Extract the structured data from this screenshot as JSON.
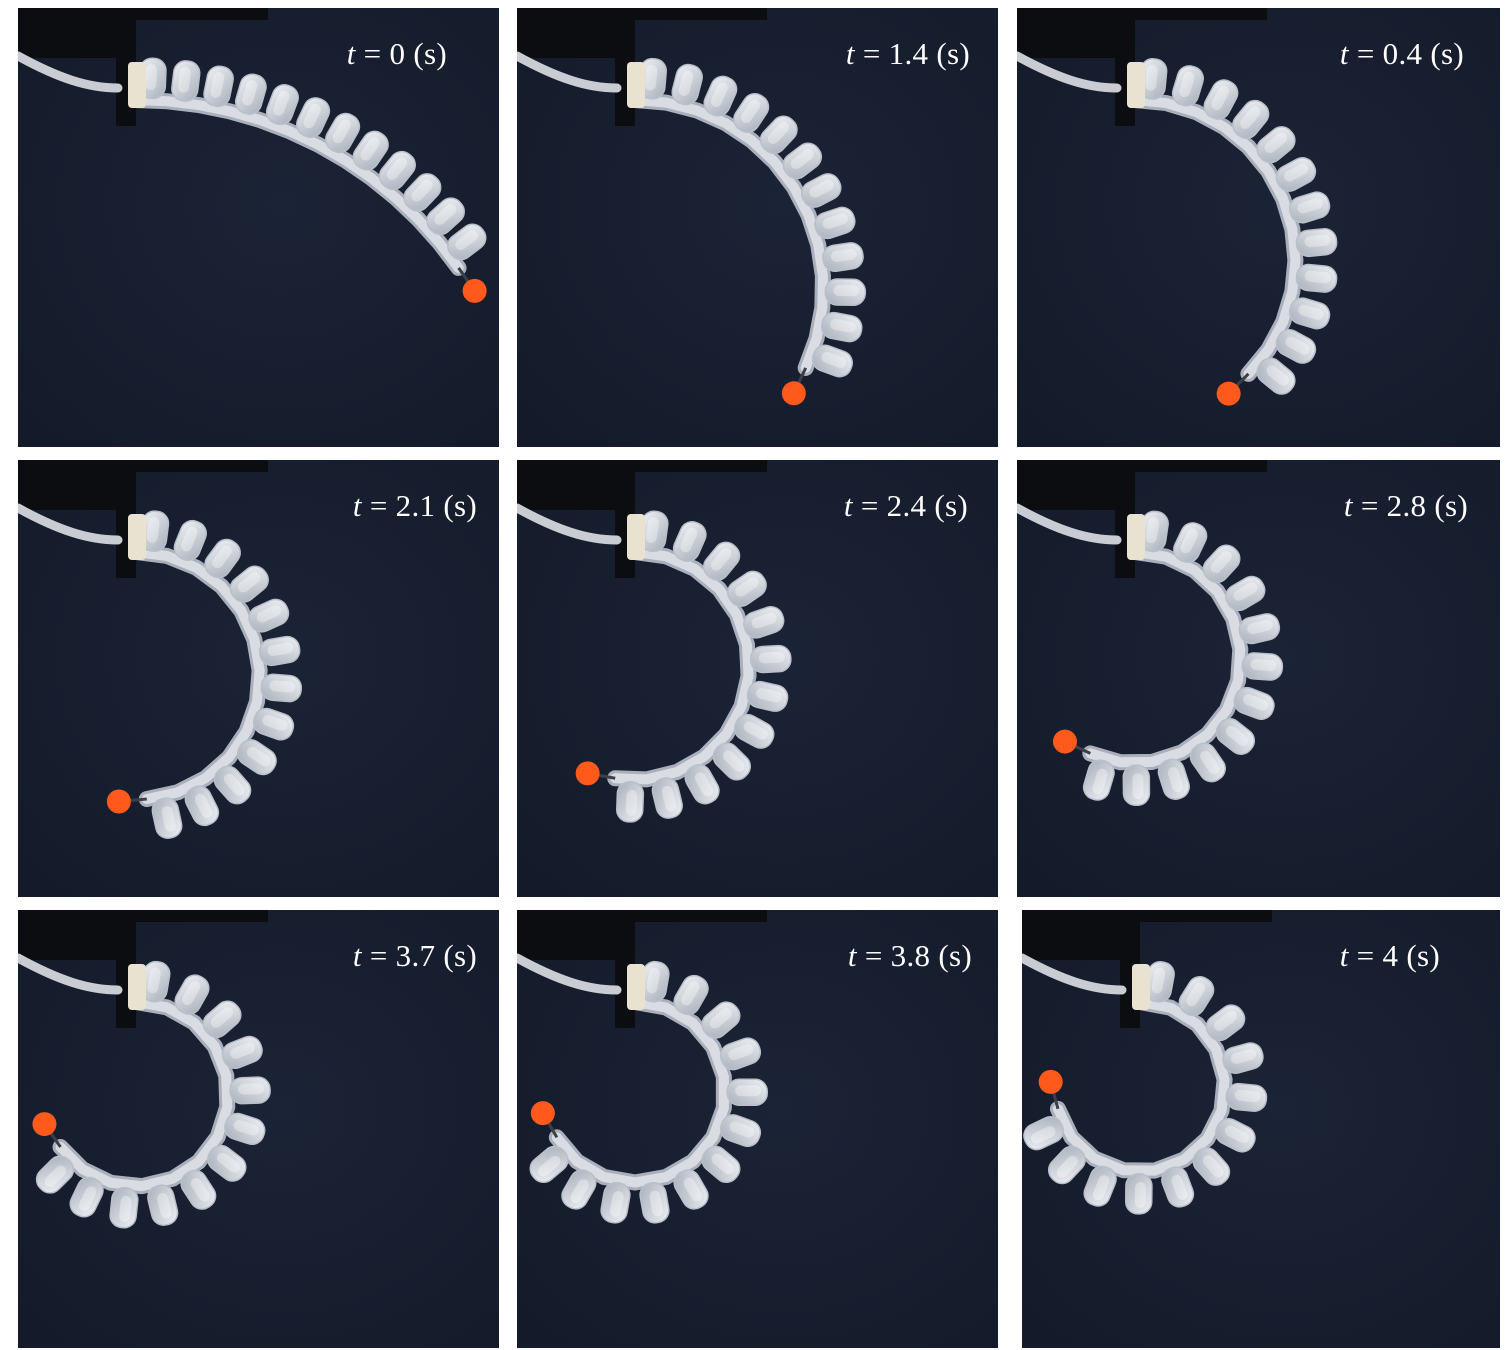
{
  "panels": [
    {
      "label": "t = 0 (s)",
      "var": "t",
      "eq": " = ",
      "value": "0",
      "unit": " (s)",
      "bend_deg": 55
    },
    {
      "label": "t = 1.4 (s)",
      "var": "t",
      "eq": " = ",
      "value": "1.4",
      "unit": " (s)",
      "bend_deg": 115
    },
    {
      "label": "t = 0.4 (s)",
      "var": "t",
      "eq": " = ",
      "value": "0.4",
      "unit": " (s)",
      "bend_deg": 135
    },
    {
      "label": "t = 2.1 (s)",
      "var": "t",
      "eq": " = ",
      "value": "2.1",
      "unit": " (s)",
      "bend_deg": 175
    },
    {
      "label": "t = 2.4 (s)",
      "var": "t",
      "eq": " = ",
      "value": "2.4",
      "unit": " (s)",
      "bend_deg": 190
    },
    {
      "label": "t = 2.8 (s)",
      "var": "t",
      "eq": " = ",
      "value": "2.8",
      "unit": " (s)",
      "bend_deg": 205
    },
    {
      "label": "t = 3.7 (s)",
      "var": "t",
      "eq": " = ",
      "value": "3.7",
      "unit": " (s)",
      "bend_deg": 235
    },
    {
      "label": "t = 3.8 (s)",
      "var": "t",
      "eq": " = ",
      "value": "3.8",
      "unit": " (s)",
      "bend_deg": 240
    },
    {
      "label": "t = 4 (s)",
      "var": "t",
      "eq": " = ",
      "value": "4",
      "unit": " (s)",
      "bend_deg": 255
    }
  ],
  "actuator": {
    "segments": 12
  },
  "colors": {
    "background": "#1b2336",
    "background_edge": "#141a29",
    "mount": "#0c0d10",
    "silicone": "#d9dde3",
    "silicone_shadow": "#a9b0bb",
    "base_cap": "#e9e2d1",
    "tube": "#c9cdd3",
    "tip_ball": "#ff5a1c",
    "label": "#ffffff"
  }
}
